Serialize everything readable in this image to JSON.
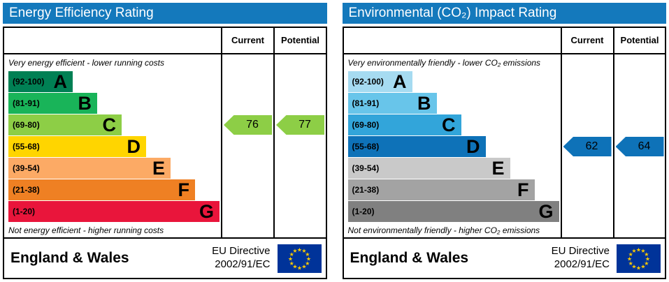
{
  "chart_data": [
    {
      "type": "epc-band-rating",
      "title": "Energy Efficiency Rating",
      "title_bar_color": "#1479bc",
      "columns": {
        "current": "Current",
        "potential": "Potential"
      },
      "top_note": "Very energy efficient - lower running costs",
      "bottom_note": "Not energy efficient - higher running costs",
      "bands": [
        {
          "letter": "A",
          "range_label": "(92-100)",
          "min": 92,
          "max": 100,
          "color": "#008054"
        },
        {
          "letter": "B",
          "range_label": "(81-91)",
          "min": 81,
          "max": 91,
          "color": "#19b459"
        },
        {
          "letter": "C",
          "range_label": "(69-80)",
          "min": 69,
          "max": 80,
          "color": "#8dce46"
        },
        {
          "letter": "D",
          "range_label": "(55-68)",
          "min": 55,
          "max": 68,
          "color": "#ffd500"
        },
        {
          "letter": "E",
          "range_label": "(39-54)",
          "min": 39,
          "max": 54,
          "color": "#fcaa65"
        },
        {
          "letter": "F",
          "range_label": "(21-38)",
          "min": 21,
          "max": 38,
          "color": "#ef8023"
        },
        {
          "letter": "G",
          "range_label": "(1-20)",
          "min": 1,
          "max": 20,
          "color": "#e9153b"
        }
      ],
      "current": {
        "value": 76,
        "band_letter": "C",
        "band_index": 2,
        "arrow_color": "#8dce46"
      },
      "potential": {
        "value": 77,
        "band_letter": "C",
        "band_index": 2,
        "arrow_color": "#8dce46"
      },
      "footer": {
        "region": "England & Wales",
        "directive_line1": "EU Directive",
        "directive_line2": "2002/91/EC",
        "flag_colors": {
          "background": "#003399",
          "stars": "#ffcc00"
        }
      }
    },
    {
      "type": "epc-band-rating",
      "title": "Environmental (CO₂) Impact Rating",
      "title_bar_color": "#1479bc",
      "columns": {
        "current": "Current",
        "potential": "Potential"
      },
      "top_note": "Very environmentally friendly - lower CO₂ emissions",
      "bottom_note": "Not environmentally friendly - higher CO₂ emissions",
      "bands": [
        {
          "letter": "A",
          "range_label": "(92-100)",
          "min": 92,
          "max": 100,
          "color": "#a6dbf1"
        },
        {
          "letter": "B",
          "range_label": "(81-91)",
          "min": 81,
          "max": 91,
          "color": "#68c5ea"
        },
        {
          "letter": "C",
          "range_label": "(69-80)",
          "min": 69,
          "max": 80,
          "color": "#32a5da"
        },
        {
          "letter": "D",
          "range_label": "(55-68)",
          "min": 55,
          "max": 68,
          "color": "#0e72b8"
        },
        {
          "letter": "E",
          "range_label": "(39-54)",
          "min": 39,
          "max": 54,
          "color": "#c9c9c9"
        },
        {
          "letter": "F",
          "range_label": "(21-38)",
          "min": 21,
          "max": 38,
          "color": "#a3a3a3"
        },
        {
          "letter": "G",
          "range_label": "(1-20)",
          "min": 1,
          "max": 20,
          "color": "#808080"
        }
      ],
      "current": {
        "value": 62,
        "band_letter": "D",
        "band_index": 3,
        "arrow_color": "#0e72b8"
      },
      "potential": {
        "value": 64,
        "band_letter": "D",
        "band_index": 3,
        "arrow_color": "#0e72b8"
      },
      "footer": {
        "region": "England & Wales",
        "directive_line1": "EU Directive",
        "directive_line2": "2002/91/EC",
        "flag_colors": {
          "background": "#003399",
          "stars": "#ffcc00"
        }
      }
    }
  ]
}
